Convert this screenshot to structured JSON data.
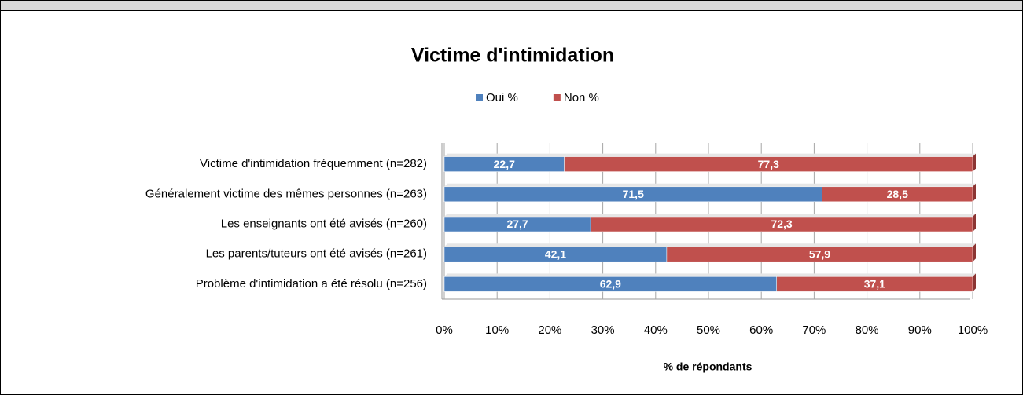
{
  "chart_data": {
    "type": "stacked_barh",
    "title": "Victime d'intimidation",
    "x_label": "% de répondants",
    "categories": [
      "Victime d'intimidation fréquemment (n=282)",
      "Généralement victime des mêmes personnes (n=263)",
      "Les enseignants ont été avisés (n=260)",
      "Les parents/tuteurs ont été avisés (n=261)",
      "Problème d'intimidation a été résolu (n=256)"
    ],
    "series": [
      {
        "name": "Oui %",
        "color": "#4f81bd",
        "values": [
          22.7,
          71.5,
          27.7,
          42.1,
          62.9
        ],
        "value_labels": [
          "22,7",
          "71,5",
          "27,7",
          "42,1",
          "62,9"
        ]
      },
      {
        "name": "Non %",
        "color": "#c0504d",
        "values": [
          77.3,
          28.5,
          72.3,
          57.9,
          37.1
        ],
        "value_labels": [
          "77,3",
          "28,5",
          "72,3",
          "57,9",
          "37,1"
        ]
      }
    ],
    "xlim": [
      0,
      100
    ],
    "xticks": [
      {
        "value": 0,
        "label": "0%"
      },
      {
        "value": 10,
        "label": "10%"
      },
      {
        "value": 20,
        "label": "20%"
      },
      {
        "value": 30,
        "label": "30%"
      },
      {
        "value": 40,
        "label": "40%"
      },
      {
        "value": 50,
        "label": "50%"
      },
      {
        "value": 60,
        "label": "60%"
      },
      {
        "value": 70,
        "label": "70%"
      },
      {
        "value": 80,
        "label": "80%"
      },
      {
        "value": 90,
        "label": "90%"
      },
      {
        "value": 100,
        "label": "100%"
      }
    ],
    "grid": true,
    "legend": "top"
  }
}
